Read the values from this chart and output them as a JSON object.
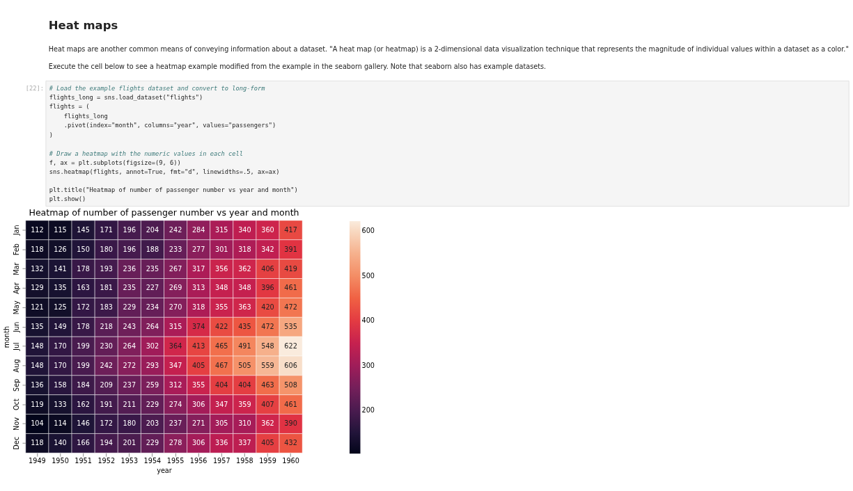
{
  "chart_data": {
    "type": "heatmap",
    "title": "Heatmap of number of passenger number vs year and month",
    "xlabel": "year",
    "ylabel": "month",
    "categories": [
      "1949",
      "1950",
      "1951",
      "1952",
      "1953",
      "1954",
      "1955",
      "1956",
      "1957",
      "1958",
      "1959",
      "1960"
    ],
    "y_categories": [
      "Jan",
      "Feb",
      "Mar",
      "Apr",
      "May",
      "Jun",
      "Jul",
      "Aug",
      "Sep",
      "Oct",
      "Nov",
      "Dec"
    ],
    "cells": [
      [
        112,
        115,
        145,
        171,
        196,
        204,
        242,
        284,
        315,
        340,
        360,
        417
      ],
      [
        118,
        126,
        150,
        180,
        196,
        188,
        233,
        277,
        301,
        318,
        342,
        391
      ],
      [
        132,
        141,
        178,
        193,
        236,
        235,
        267,
        317,
        356,
        362,
        406,
        419
      ],
      [
        129,
        135,
        163,
        181,
        235,
        227,
        269,
        313,
        348,
        348,
        396,
        461
      ],
      [
        121,
        125,
        172,
        183,
        229,
        234,
        270,
        318,
        355,
        363,
        420,
        472
      ],
      [
        135,
        149,
        178,
        218,
        243,
        264,
        315,
        374,
        422,
        435,
        472,
        535
      ],
      [
        148,
        170,
        199,
        230,
        264,
        302,
        364,
        413,
        465,
        491,
        548,
        622
      ],
      [
        148,
        170,
        199,
        242,
        272,
        293,
        347,
        405,
        467,
        505,
        559,
        606
      ],
      [
        136,
        158,
        184,
        209,
        237,
        259,
        312,
        355,
        404,
        404,
        463,
        508
      ],
      [
        119,
        133,
        162,
        191,
        211,
        229,
        274,
        306,
        347,
        359,
        407,
        461
      ],
      [
        104,
        114,
        146,
        172,
        180,
        203,
        237,
        271,
        305,
        310,
        362,
        390
      ],
      [
        118,
        140,
        166,
        194,
        201,
        229,
        278,
        306,
        336,
        337,
        405,
        432
      ]
    ],
    "clim": [
      104,
      622
    ],
    "cticks": [
      200,
      300,
      400,
      500,
      600
    ],
    "data_labels": true,
    "grid": false,
    "annotations": [
      "Heat maps",
      "Heat maps are another common means of conveying information about a dataset. \"A heat map (or heatmap) is a 2-dimensional data visualization technique that represents the magnitude of individual values within a dataset as a color.\"",
      "Execute the cell below to see a heatmap example modified from the example in the seaborn gallery. Note that seaborn also has example datasets.",
      "[22]:",
      "# Load the example flights dataset and convert to long-form",
      "flights_long = sns.load_dataset(\"flights\")",
      "flights = (",
      "    flights_long",
      "    .pivot(index=\"month\", columns=\"year\", values=\"passengers\")",
      ")",
      "# Draw a heatmap with the numeric values in each cell",
      "f, ax = plt.subplots(figsize=(9, 6))",
      "sns.heatmap(flights, annot=True, fmt=\"d\", linewidths=.5, ax=ax)",
      "plt.title(\"Heatmap of number of passenger number vs year and month\")",
      "plt.show()"
    ]
  }
}
